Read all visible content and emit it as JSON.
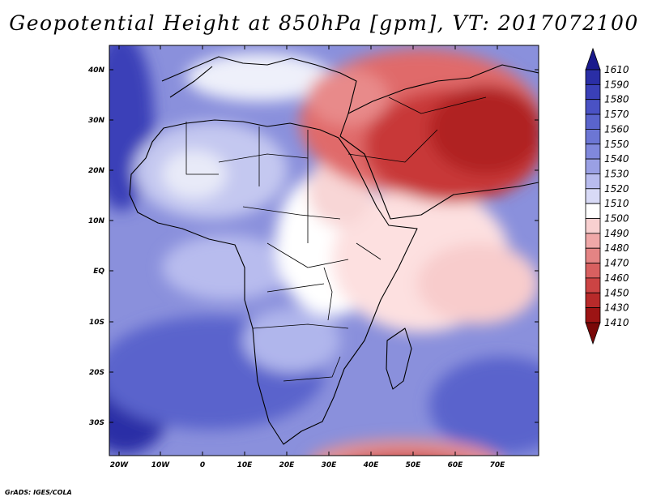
{
  "title": "Geopotential Height at 850hPa [gpm], VT: 2017072100",
  "credit": "GrADS: IGES/COLA",
  "axes": {
    "lat_labels": [
      "40N",
      "30N",
      "20N",
      "10N",
      "EQ",
      "10S",
      "20S",
      "30S"
    ],
    "lon_labels": [
      "20W",
      "10W",
      "0",
      "10E",
      "20E",
      "30E",
      "40E",
      "50E",
      "60E",
      "70E"
    ]
  },
  "colorbar": {
    "levels": [
      "1610",
      "1590",
      "1580",
      "1570",
      "1560",
      "1550",
      "1540",
      "1530",
      "1520",
      "1510",
      "1500",
      "1490",
      "1480",
      "1470",
      "1460",
      "1450",
      "1430",
      "1410"
    ],
    "colors": [
      "#1a1a8c",
      "#2a2ea6",
      "#3a40b8",
      "#4a52c4",
      "#5a64cc",
      "#6c76d4",
      "#8088dc",
      "#9aa0e4",
      "#b8bcee",
      "#d8daf6",
      "#ffffff",
      "#f8d0d0",
      "#f0a8a8",
      "#e48484",
      "#d86060",
      "#cc4444",
      "#b82a2a",
      "#9c1414",
      "#7a0808"
    ]
  }
}
